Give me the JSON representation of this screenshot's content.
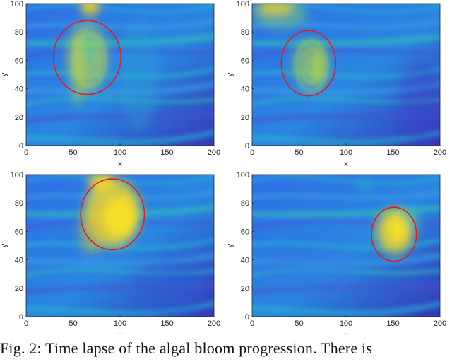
{
  "figure": {
    "caption": "Fig. 2: Time lapse of the algal bloom progression. There is",
    "colors": {
      "circle": "#e41a1c",
      "axis": "#262626"
    }
  },
  "chart_data": [
    {
      "type": "heatmap",
      "panel": "top-left",
      "xlabel": "x",
      "ylabel": "y",
      "xlim": [
        0,
        200
      ],
      "ylim": [
        0,
        100
      ],
      "xticks": [
        0,
        50,
        100,
        150,
        200
      ],
      "yticks": [
        0,
        20,
        40,
        60,
        80,
        100
      ],
      "colormap": "parula",
      "highlight_circle": {
        "center": [
          65,
          62
        ],
        "radius_x": 36,
        "radius_y": 26
      }
    },
    {
      "type": "heatmap",
      "panel": "top-right",
      "xlabel": "x",
      "ylabel": "y",
      "xlim": [
        0,
        200
      ],
      "ylim": [
        0,
        100
      ],
      "xticks": [
        0,
        50,
        100,
        150,
        200
      ],
      "yticks": [
        0,
        20,
        40,
        60,
        80,
        100
      ],
      "colormap": "parula",
      "highlight_circle": {
        "center": [
          60,
          58
        ],
        "radius_x": 29,
        "radius_y": 23
      }
    },
    {
      "type": "heatmap",
      "panel": "bottom-left",
      "xlabel": "x",
      "ylabel": "y",
      "xlim": [
        0,
        200
      ],
      "ylim": [
        0,
        100
      ],
      "xticks": [
        0,
        50,
        100,
        150,
        200
      ],
      "yticks": [
        0,
        20,
        40,
        60,
        80,
        100
      ],
      "colormap": "parula",
      "highlight_circle": {
        "center": [
          92,
          72
        ],
        "radius_x": 34,
        "radius_y": 25
      }
    },
    {
      "type": "heatmap",
      "panel": "bottom-right",
      "xlabel": "x",
      "ylabel": "y",
      "xlim": [
        0,
        200
      ],
      "ylim": [
        0,
        100
      ],
      "xticks": [
        0,
        50,
        100,
        150,
        200
      ],
      "yticks": [
        0,
        20,
        40,
        60,
        80,
        100
      ],
      "colormap": "parula",
      "highlight_circle": {
        "center": [
          151,
          58
        ],
        "radius_x": 24,
        "radius_y": 19
      }
    }
  ]
}
